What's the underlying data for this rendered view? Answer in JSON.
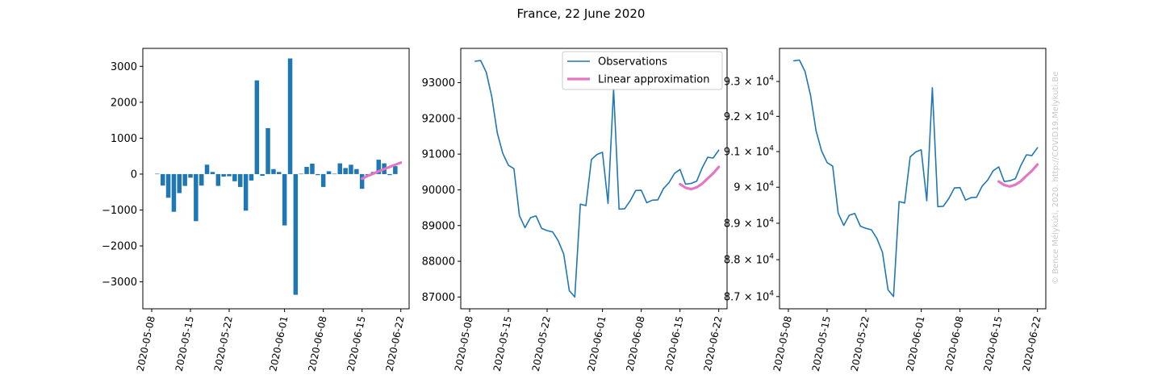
{
  "figure": {
    "title": "France, 22 June 2020",
    "watermark": "© Bence Mélykúti, 2020. http://COVID19.Melykuti.Be",
    "colors": {
      "observations": "#1f77b4",
      "approximation": "#e377c2",
      "watermark": "#c8c8c8"
    }
  },
  "chart_data": [
    {
      "type": "bar",
      "x_ticks": [
        "2020-05-08",
        "2020-05-15",
        "2020-05-22",
        "2020-06-01",
        "2020-06-08",
        "2020-06-15",
        "2020-06-22"
      ],
      "y_ticks": [
        "−3000",
        "−2000",
        "−1000",
        "0",
        "1000",
        "2000",
        "3000"
      ],
      "ylim": [
        -3750,
        3500
      ],
      "grid": false,
      "bars": [
        {
          "date": "2020-05-09",
          "value": 10
        },
        {
          "date": "2020-05-10",
          "value": -320
        },
        {
          "date": "2020-05-11",
          "value": -660
        },
        {
          "date": "2020-05-12",
          "value": -1050
        },
        {
          "date": "2020-05-13",
          "value": -530
        },
        {
          "date": "2020-05-14",
          "value": -330
        },
        {
          "date": "2020-05-15",
          "value": -100
        },
        {
          "date": "2020-05-16",
          "value": -1310
        },
        {
          "date": "2020-05-17",
          "value": -320
        },
        {
          "date": "2020-05-18",
          "value": 260
        },
        {
          "date": "2020-05-19",
          "value": 60
        },
        {
          "date": "2020-05-20",
          "value": -330
        },
        {
          "date": "2020-05-21",
          "value": -70
        },
        {
          "date": "2020-05-22",
          "value": -60
        },
        {
          "date": "2020-05-23",
          "value": -200
        },
        {
          "date": "2020-05-24",
          "value": -360
        },
        {
          "date": "2020-05-25",
          "value": -1020
        },
        {
          "date": "2020-05-26",
          "value": -180
        },
        {
          "date": "2020-05-27",
          "value": 2610
        },
        {
          "date": "2020-05-28",
          "value": -50
        },
        {
          "date": "2020-05-29",
          "value": 1280
        },
        {
          "date": "2020-05-30",
          "value": 140
        },
        {
          "date": "2020-05-31",
          "value": 60
        },
        {
          "date": "2020-06-01",
          "value": -1430
        },
        {
          "date": "2020-06-02",
          "value": 3220
        },
        {
          "date": "2020-06-03",
          "value": -3360
        },
        {
          "date": "2020-06-04",
          "value": 10
        },
        {
          "date": "2020-06-05",
          "value": 200
        },
        {
          "date": "2020-06-06",
          "value": 290
        },
        {
          "date": "2020-06-07",
          "value": -30
        },
        {
          "date": "2020-06-08",
          "value": -360
        },
        {
          "date": "2020-06-09",
          "value": 80
        },
        {
          "date": "2020-06-10",
          "value": 10
        },
        {
          "date": "2020-06-11",
          "value": 300
        },
        {
          "date": "2020-06-12",
          "value": 170
        },
        {
          "date": "2020-06-13",
          "value": 260
        },
        {
          "date": "2020-06-14",
          "value": 140
        },
        {
          "date": "2020-06-15",
          "value": -410
        },
        {
          "date": "2020-06-16",
          "value": -30
        },
        {
          "date": "2020-06-17",
          "value": 60
        },
        {
          "date": "2020-06-18",
          "value": 400
        },
        {
          "date": "2020-06-19",
          "value": 300
        },
        {
          "date": "2020-06-20",
          "value": -30
        },
        {
          "date": "2020-06-21",
          "value": 220
        }
      ],
      "approximation": {
        "x": [
          "2020-06-15",
          "2020-06-16",
          "2020-06-17",
          "2020-06-18",
          "2020-06-19",
          "2020-06-20",
          "2020-06-21",
          "2020-06-22"
        ],
        "y": [
          -130,
          -50,
          10,
          80,
          140,
          200,
          260,
          320
        ]
      }
    },
    {
      "type": "line",
      "x_ticks": [
        "2020-05-08",
        "2020-05-15",
        "2020-05-22",
        "2020-06-01",
        "2020-06-08",
        "2020-06-15",
        "2020-06-22"
      ],
      "y_ticks": [
        "87000",
        "88000",
        "89000",
        "90000",
        "91000",
        "92000",
        "93000"
      ],
      "ylim": [
        86670,
        93960
      ],
      "grid": false,
      "legend": {
        "placement": "top-right",
        "entries": [
          "Observations",
          "Linear approximation"
        ]
      },
      "series": [
        {
          "name": "Observations",
          "x": [
            "2020-05-09",
            "2020-05-10",
            "2020-05-11",
            "2020-05-12",
            "2020-05-13",
            "2020-05-14",
            "2020-05-15",
            "2020-05-16",
            "2020-05-17",
            "2020-05-18",
            "2020-05-19",
            "2020-05-20",
            "2020-05-21",
            "2020-05-22",
            "2020-05-23",
            "2020-05-24",
            "2020-05-25",
            "2020-05-26",
            "2020-05-27",
            "2020-05-28",
            "2020-05-29",
            "2020-05-30",
            "2020-05-31",
            "2020-06-01",
            "2020-06-02",
            "2020-06-03",
            "2020-06-04",
            "2020-06-05",
            "2020-06-06",
            "2020-06-07",
            "2020-06-08",
            "2020-06-09",
            "2020-06-10",
            "2020-06-11",
            "2020-06-12",
            "2020-06-13",
            "2020-06-14",
            "2020-06-15",
            "2020-06-16",
            "2020-06-17",
            "2020-06-18",
            "2020-06-19",
            "2020-06-20",
            "2020-06-21",
            "2020-06-22"
          ],
          "y": [
            93600,
            93620,
            93290,
            92610,
            91590,
            91020,
            90690,
            90590,
            89280,
            88940,
            89220,
            89270,
            88920,
            88860,
            88820,
            88580,
            88200,
            87180,
            87000,
            89600,
            89560,
            90850,
            90990,
            91050,
            89620,
            92820,
            89460,
            89470,
            89690,
            89980,
            89990,
            89640,
            89710,
            89720,
            90030,
            90200,
            90460,
            90570,
            90160,
            90180,
            90240,
            90610,
            90910,
            90890,
            91110
          ]
        },
        {
          "name": "Linear approximation",
          "x": [
            "2020-06-15",
            "2020-06-16",
            "2020-06-17",
            "2020-06-18",
            "2020-06-19",
            "2020-06-20",
            "2020-06-21",
            "2020-06-22"
          ],
          "y": [
            90160,
            90060,
            90020,
            90070,
            90170,
            90320,
            90460,
            90640
          ]
        }
      ]
    },
    {
      "type": "line",
      "y_scale": "log",
      "x_ticks": [
        "2020-05-08",
        "2020-05-15",
        "2020-05-22",
        "2020-06-01",
        "2020-06-08",
        "2020-06-15",
        "2020-06-22"
      ],
      "y_ticks": [
        {
          "mantissa": "8.7",
          "base": "10",
          "exp": "4"
        },
        {
          "mantissa": "8.8",
          "base": "10",
          "exp": "4"
        },
        {
          "mantissa": "8.9",
          "base": "10",
          "exp": "4"
        },
        {
          "mantissa": "9",
          "base": "10",
          "exp": "4"
        },
        {
          "mantissa": "9.1",
          "base": "10",
          "exp": "4"
        },
        {
          "mantissa": "9.2",
          "base": "10",
          "exp": "4"
        },
        {
          "mantissa": "9.3",
          "base": "10",
          "exp": "4"
        }
      ],
      "ylim": [
        86670,
        93960
      ],
      "grid": false,
      "series": [
        {
          "name": "Observations",
          "x": [
            "2020-05-09",
            "2020-05-10",
            "2020-05-11",
            "2020-05-12",
            "2020-05-13",
            "2020-05-14",
            "2020-05-15",
            "2020-05-16",
            "2020-05-17",
            "2020-05-18",
            "2020-05-19",
            "2020-05-20",
            "2020-05-21",
            "2020-05-22",
            "2020-05-23",
            "2020-05-24",
            "2020-05-25",
            "2020-05-26",
            "2020-05-27",
            "2020-05-28",
            "2020-05-29",
            "2020-05-30",
            "2020-05-31",
            "2020-06-01",
            "2020-06-02",
            "2020-06-03",
            "2020-06-04",
            "2020-06-05",
            "2020-06-06",
            "2020-06-07",
            "2020-06-08",
            "2020-06-09",
            "2020-06-10",
            "2020-06-11",
            "2020-06-12",
            "2020-06-13",
            "2020-06-14",
            "2020-06-15",
            "2020-06-16",
            "2020-06-17",
            "2020-06-18",
            "2020-06-19",
            "2020-06-20",
            "2020-06-21",
            "2020-06-22"
          ],
          "y": [
            93600,
            93620,
            93290,
            92610,
            91590,
            91020,
            90690,
            90590,
            89280,
            88940,
            89220,
            89270,
            88920,
            88860,
            88820,
            88580,
            88200,
            87180,
            87000,
            89600,
            89560,
            90850,
            90990,
            91050,
            89620,
            92820,
            89460,
            89470,
            89690,
            89980,
            89990,
            89640,
            89710,
            89720,
            90030,
            90200,
            90460,
            90570,
            90160,
            90180,
            90240,
            90610,
            90910,
            90890,
            91110
          ]
        },
        {
          "name": "Linear approximation",
          "x": [
            "2020-06-15",
            "2020-06-16",
            "2020-06-17",
            "2020-06-18",
            "2020-06-19",
            "2020-06-20",
            "2020-06-21",
            "2020-06-22"
          ],
          "y": [
            90160,
            90060,
            90020,
            90070,
            90170,
            90320,
            90460,
            90640
          ]
        }
      ]
    }
  ]
}
